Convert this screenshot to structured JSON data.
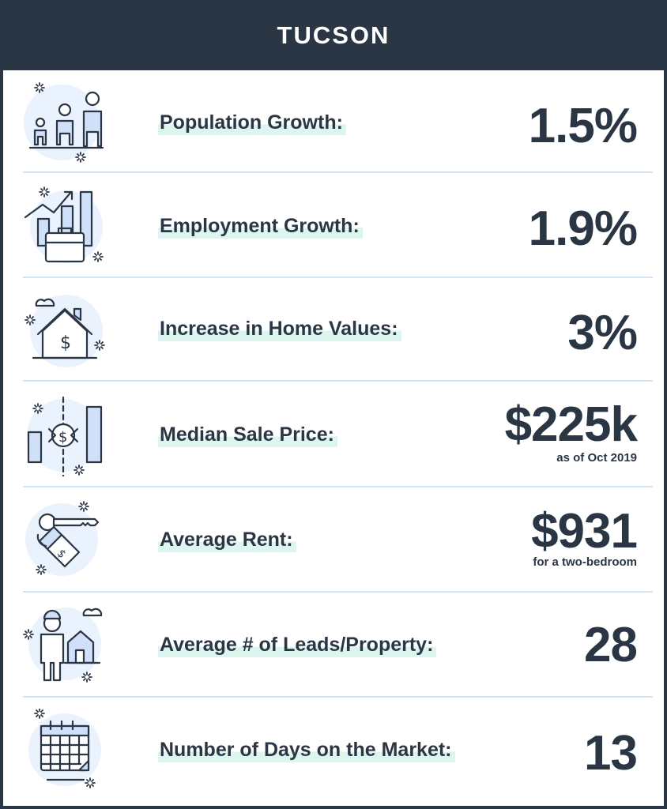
{
  "header": {
    "title": "TUCSON"
  },
  "stats": [
    {
      "label": "Population Growth:",
      "value": "1.5%",
      "icon": "people-icon"
    },
    {
      "label": "Employment Growth:",
      "value": "1.9%",
      "icon": "briefcase-chart-icon"
    },
    {
      "label": "Increase in Home Values:",
      "value": "3%",
      "icon": "house-dollar-icon"
    },
    {
      "label": "Median Sale Price:",
      "value": "$225k",
      "note": "as of Oct 2019",
      "icon": "price-bars-icon"
    },
    {
      "label": "Average Rent:",
      "value": "$931",
      "note": "for a two-bedroom",
      "icon": "key-tag-icon"
    },
    {
      "label": "Average # of Leads/Property:",
      "value": "28",
      "icon": "person-house-icon"
    },
    {
      "label": "Number of Days on the Market:",
      "value": "13",
      "icon": "calendar-icon"
    }
  ],
  "colors": {
    "header_bg": "#2b3645",
    "highlight": "#dcf6ef",
    "icon_fill": "#cfe0f8",
    "divider": "#d3e3f4"
  }
}
